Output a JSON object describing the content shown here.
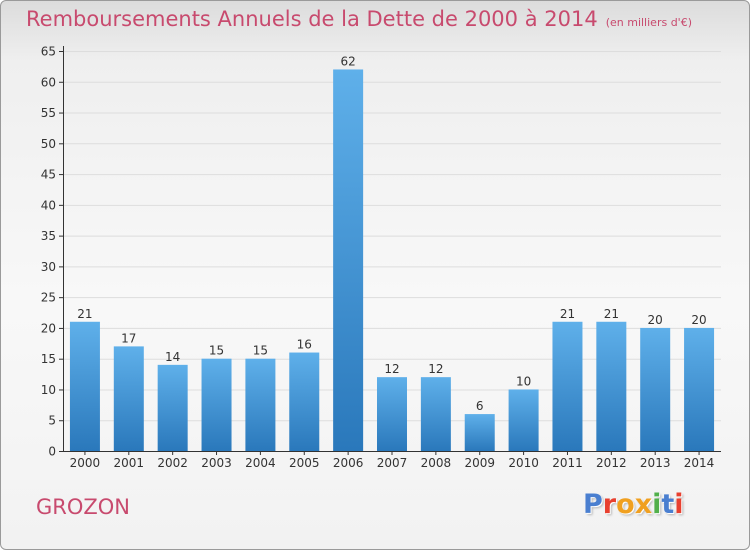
{
  "header": {
    "title": "Remboursements Annuels de la Dette de 2000 à 2014",
    "unit": "(en milliers d'€)"
  },
  "footer": {
    "commune": "GROZON",
    "logo_text": "Proxiti",
    "logo_colors": [
      "#4a7fd0",
      "#e8402f",
      "#f0a020",
      "#f0a020",
      "#52b04b",
      "#4a7fd0",
      "#e8402f"
    ]
  },
  "colors": {
    "title": "#c84a6e",
    "bar_top": "#5fb0ea",
    "bar_bottom": "#2a78bb",
    "grid": "#dddddd",
    "axis": "#333333"
  },
  "chart_data": {
    "type": "bar",
    "categories": [
      "2000",
      "2001",
      "2002",
      "2003",
      "2004",
      "2005",
      "2006",
      "2007",
      "2008",
      "2009",
      "2010",
      "2011",
      "2012",
      "2013",
      "2014"
    ],
    "values": [
      21,
      17,
      14,
      15,
      15,
      16,
      62,
      12,
      12,
      6,
      10,
      21,
      21,
      20,
      20
    ],
    "title": "Remboursements Annuels de la Dette de 2000 à 2014",
    "ylim": [
      0,
      65
    ],
    "yticks": [
      0,
      5,
      10,
      15,
      20,
      25,
      30,
      35,
      40,
      45,
      50,
      55,
      60,
      65
    ],
    "grid": true,
    "data_labels": true
  }
}
